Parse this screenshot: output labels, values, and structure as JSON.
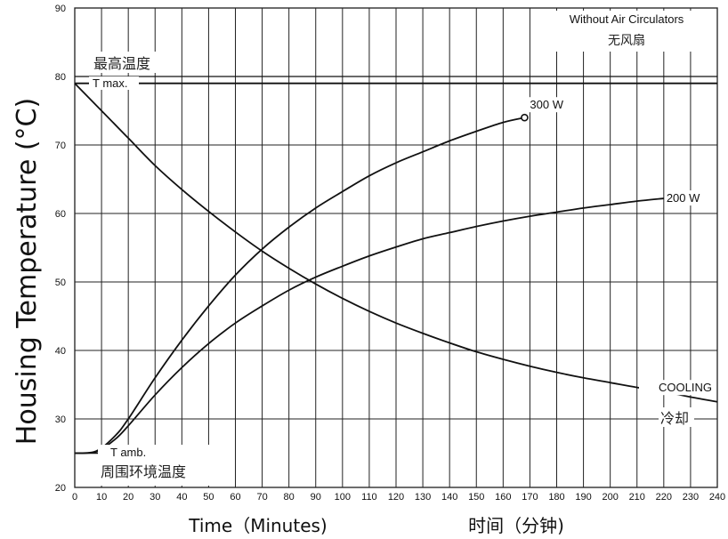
{
  "chart_data": {
    "type": "line",
    "ylabel": "Housing Temperature (°C)",
    "xlabel": "Time（Minutes)",
    "xlabel_cn": "时间（分钟)",
    "xlim": [
      0,
      240
    ],
    "ylim": [
      20,
      90
    ],
    "xticks": [
      0,
      10,
      20,
      30,
      40,
      50,
      60,
      70,
      80,
      90,
      100,
      110,
      120,
      130,
      140,
      150,
      160,
      170,
      180,
      190,
      200,
      210,
      220,
      230,
      240
    ],
    "yticks": [
      20,
      30,
      40,
      50,
      60,
      70,
      80,
      90
    ],
    "grid": true,
    "annotations": {
      "top_right_en": "Without Air Circulators",
      "top_right_cn": "无风扇",
      "tmax_cn": "最高温度",
      "tmax_en": "T max.",
      "tamb_en": "T amb.",
      "tamb_cn": "周围环境温度",
      "cooling_cn": "冷却"
    },
    "reference_lines": [
      {
        "name": "T max.",
        "y": 79
      },
      {
        "name": "T amb.",
        "y": 25
      }
    ],
    "series": [
      {
        "name": "300 W",
        "x": [
          0,
          8,
          15,
          20,
          30,
          40,
          50,
          60,
          70,
          80,
          90,
          100,
          110,
          120,
          130,
          140,
          150,
          160,
          168
        ],
        "y": [
          25,
          25.3,
          27.5,
          30,
          36,
          41.5,
          46.5,
          51,
          54.8,
          58,
          60.8,
          63.2,
          65.5,
          67.4,
          69,
          70.6,
          72,
          73.3,
          74
        ]
      },
      {
        "name": "200 W",
        "x": [
          0,
          8,
          15,
          20,
          30,
          40,
          50,
          60,
          70,
          80,
          90,
          100,
          110,
          120,
          130,
          140,
          150,
          160,
          170,
          180,
          190,
          200,
          210,
          220
        ],
        "y": [
          25,
          25.2,
          27,
          29,
          33.5,
          37.5,
          41,
          44,
          46.5,
          48.8,
          50.7,
          52.3,
          53.8,
          55.1,
          56.3,
          57.2,
          58.1,
          58.9,
          59.6,
          60.2,
          60.8,
          61.3,
          61.8,
          62.2
        ]
      },
      {
        "name": "COOLING",
        "x": [
          0,
          10,
          20,
          30,
          40,
          50,
          60,
          70,
          80,
          90,
          100,
          110,
          120,
          130,
          140,
          150,
          160,
          170,
          180,
          190,
          200,
          210,
          220,
          230,
          240
        ],
        "y": [
          79,
          75,
          71,
          67,
          63.5,
          60.3,
          57.3,
          54.5,
          52,
          49.7,
          47.6,
          45.7,
          44,
          42.5,
          41.1,
          39.8,
          38.7,
          37.7,
          36.8,
          36,
          35.3,
          34.6,
          34,
          33.2,
          32.5
        ]
      }
    ]
  }
}
